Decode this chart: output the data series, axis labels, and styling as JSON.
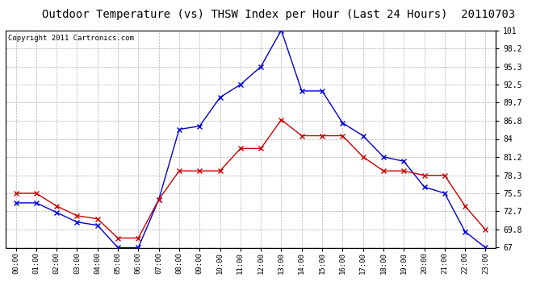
{
  "title": "Outdoor Temperature (vs) THSW Index per Hour (Last 24 Hours)  20110703",
  "copyright": "Copyright 2011 Cartronics.com",
  "x_labels": [
    "00:00",
    "01:00",
    "02:00",
    "03:00",
    "04:00",
    "05:00",
    "06:00",
    "07:00",
    "08:00",
    "09:00",
    "10:00",
    "11:00",
    "12:00",
    "13:00",
    "14:00",
    "15:00",
    "16:00",
    "17:00",
    "18:00",
    "19:00",
    "20:00",
    "21:00",
    "22:00",
    "23:00"
  ],
  "temp_data": [
    75.5,
    75.5,
    73.5,
    72.0,
    71.5,
    68.5,
    68.5,
    74.5,
    79.0,
    79.0,
    79.0,
    82.5,
    82.5,
    87.0,
    84.5,
    84.5,
    84.5,
    81.2,
    79.0,
    79.0,
    78.3,
    78.3,
    73.5,
    69.8
  ],
  "thsw_data": [
    74.0,
    74.0,
    72.5,
    71.0,
    70.5,
    67.0,
    67.0,
    74.5,
    85.5,
    86.0,
    90.5,
    92.5,
    95.3,
    101.0,
    91.5,
    91.5,
    86.5,
    84.5,
    81.2,
    80.5,
    76.5,
    75.5,
    69.5,
    67.0
  ],
  "temp_color": "#cc0000",
  "thsw_color": "#0000cc",
  "y_min": 67.0,
  "y_max": 101.0,
  "y_ticks": [
    67.0,
    69.8,
    72.7,
    75.5,
    78.3,
    81.2,
    84.0,
    86.8,
    89.7,
    92.5,
    95.3,
    98.2,
    101.0
  ],
  "bg_color": "#ffffff",
  "plot_bg_color": "#ffffff",
  "grid_color": "#b0b0b0",
  "title_fontsize": 10,
  "copyright_fontsize": 6.5
}
